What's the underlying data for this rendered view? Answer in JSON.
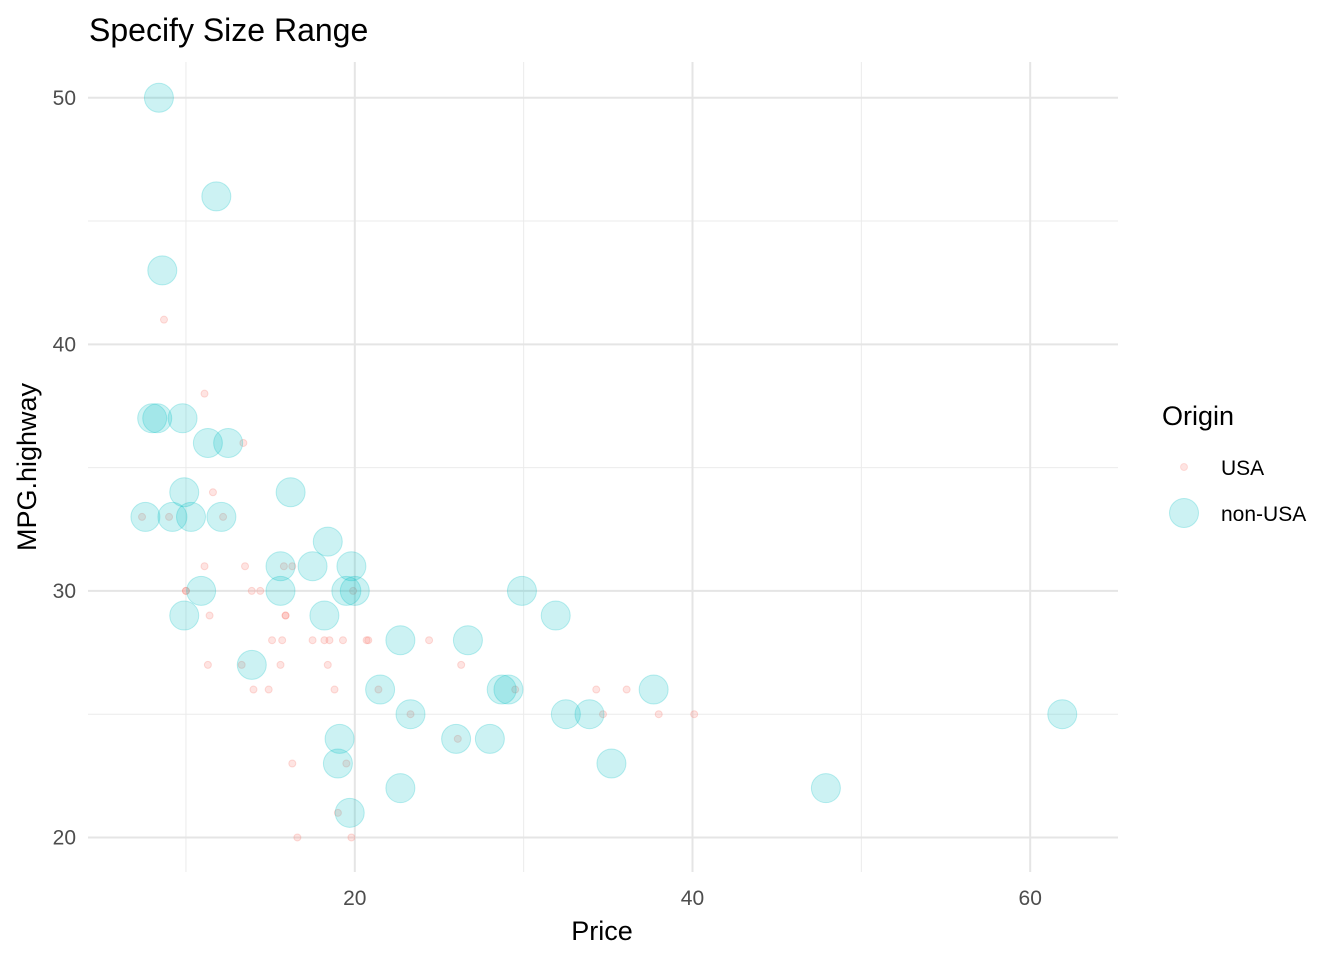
{
  "chart_data": {
    "type": "scatter",
    "title": "Specify Size Range",
    "xlabel": "Price",
    "ylabel": "MPG.highway",
    "xlim": [
      4.2,
      65.2
    ],
    "ylim": [
      18.6,
      51.45
    ],
    "x_ticks": [
      20,
      40,
      60
    ],
    "y_ticks": [
      20,
      30,
      40,
      50
    ],
    "x_minor": [
      10,
      30,
      50
    ],
    "y_minor": [
      25,
      35,
      45
    ],
    "grid": true,
    "legend": {
      "title": "Origin",
      "position": "right",
      "entries": [
        "USA",
        "non-USA"
      ]
    },
    "series": [
      {
        "name": "USA",
        "color": "#F8766D",
        "opacity": 0.2,
        "size": "small",
        "points": [
          [
            7.4,
            33
          ],
          [
            8.7,
            41
          ],
          [
            9.0,
            33
          ],
          [
            10.0,
            30
          ],
          [
            10.0,
            30
          ],
          [
            11.1,
            31
          ],
          [
            11.1,
            38
          ],
          [
            11.3,
            27
          ],
          [
            11.4,
            29
          ],
          [
            11.6,
            34
          ],
          [
            12.2,
            33
          ],
          [
            13.3,
            27
          ],
          [
            13.4,
            36
          ],
          [
            13.5,
            31
          ],
          [
            13.9,
            30
          ],
          [
            14.0,
            26
          ],
          [
            14.4,
            30
          ],
          [
            14.9,
            26
          ],
          [
            15.1,
            28
          ],
          [
            15.6,
            27
          ],
          [
            15.7,
            28
          ],
          [
            15.8,
            31
          ],
          [
            15.9,
            29
          ],
          [
            15.9,
            29
          ],
          [
            16.3,
            31
          ],
          [
            16.3,
            23
          ],
          [
            16.6,
            20
          ],
          [
            17.5,
            28
          ],
          [
            18.2,
            28
          ],
          [
            18.4,
            27
          ],
          [
            18.5,
            28
          ],
          [
            18.8,
            26
          ],
          [
            19.0,
            21
          ],
          [
            19.3,
            28
          ],
          [
            19.5,
            23
          ],
          [
            19.8,
            20
          ],
          [
            19.9,
            30
          ],
          [
            20.7,
            28
          ],
          [
            20.8,
            28
          ],
          [
            21.4,
            26
          ],
          [
            23.3,
            25
          ],
          [
            24.4,
            28
          ],
          [
            26.1,
            24
          ],
          [
            26.3,
            27
          ],
          [
            29.5,
            26
          ],
          [
            34.3,
            26
          ],
          [
            34.7,
            25
          ],
          [
            36.1,
            26
          ],
          [
            38.0,
            25
          ],
          [
            40.1,
            25
          ]
        ]
      },
      {
        "name": "non-USA",
        "color": "#00BFC4",
        "opacity": 0.2,
        "size": "large",
        "points": [
          [
            8.4,
            50
          ],
          [
            8.6,
            43
          ],
          [
            8.0,
            37
          ],
          [
            8.3,
            37
          ],
          [
            9.8,
            37
          ],
          [
            11.8,
            46
          ],
          [
            11.3,
            36
          ],
          [
            12.5,
            36
          ],
          [
            9.9,
            34
          ],
          [
            16.2,
            34
          ],
          [
            7.6,
            33
          ],
          [
            9.2,
            33
          ],
          [
            10.3,
            33
          ],
          [
            12.1,
            33
          ],
          [
            18.4,
            32
          ],
          [
            15.6,
            31
          ],
          [
            17.5,
            31
          ],
          [
            19.8,
            31
          ],
          [
            10.9,
            30
          ],
          [
            15.6,
            30
          ],
          [
            19.5,
            30
          ],
          [
            20.0,
            30
          ],
          [
            29.9,
            30
          ],
          [
            9.9,
            29
          ],
          [
            18.2,
            29
          ],
          [
            31.9,
            29
          ],
          [
            22.7,
            28
          ],
          [
            26.7,
            28
          ],
          [
            13.9,
            27
          ],
          [
            21.5,
            26
          ],
          [
            28.7,
            26
          ],
          [
            29.1,
            26
          ],
          [
            37.7,
            26
          ],
          [
            23.3,
            25
          ],
          [
            32.5,
            25
          ],
          [
            33.9,
            25
          ],
          [
            61.9,
            25
          ],
          [
            19.1,
            24
          ],
          [
            26.0,
            24
          ],
          [
            28.0,
            24
          ],
          [
            19.0,
            23
          ],
          [
            35.2,
            23
          ],
          [
            22.7,
            22
          ],
          [
            47.9,
            22
          ],
          [
            19.7,
            21
          ]
        ]
      }
    ]
  }
}
